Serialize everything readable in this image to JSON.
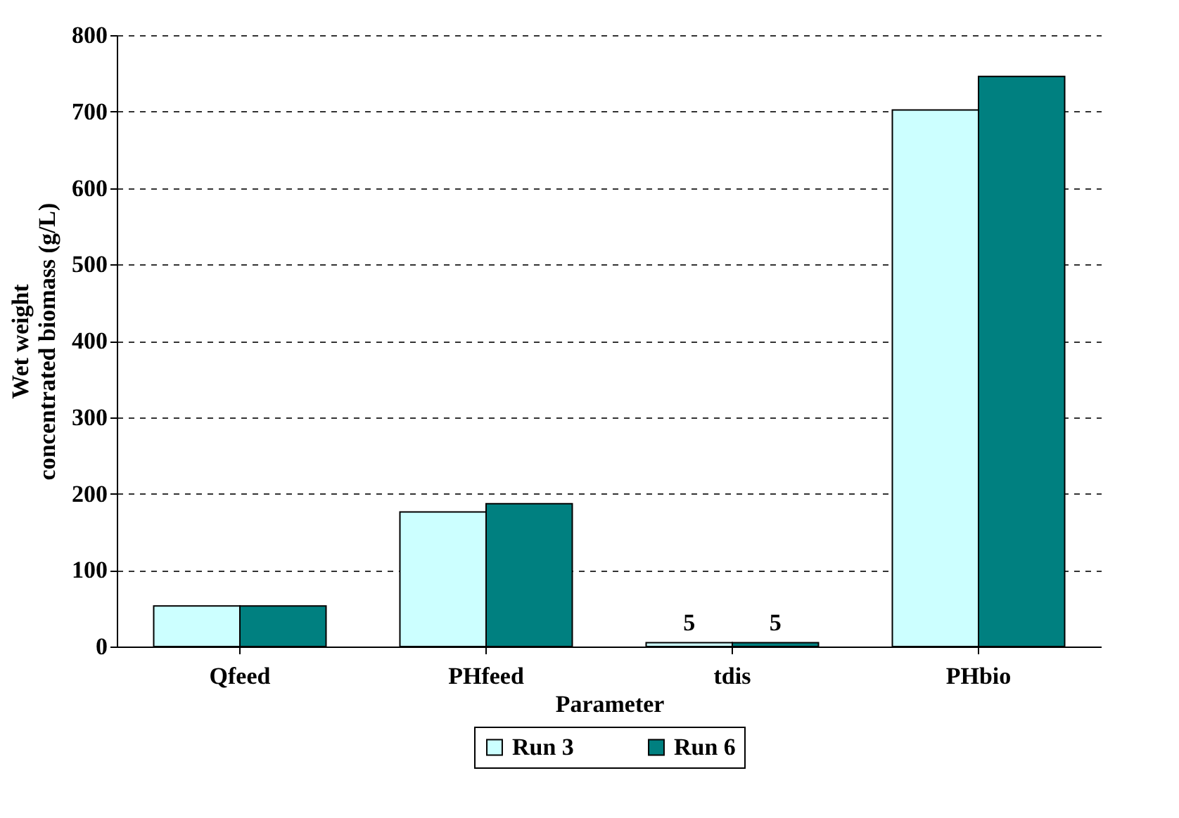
{
  "chart_data": {
    "type": "bar",
    "xlabel": "Parameter",
    "ylabel": "Wet weight concentrated biomass (g/L)",
    "categories": [
      "Qfeed",
      "PHfeed",
      "tdis",
      "PHbio"
    ],
    "series": [
      {
        "name": "Run 3",
        "color": "#ccffff",
        "values": [
          53,
          176,
          5,
          702
        ],
        "value_labels": [
          null,
          null,
          "5",
          null
        ]
      },
      {
        "name": "Run 6",
        "color": "#008080",
        "values": [
          53,
          187,
          5,
          746
        ],
        "value_labels": [
          null,
          null,
          "5",
          null
        ]
      }
    ],
    "ylim": [
      0,
      800
    ],
    "yticks": [
      0,
      100,
      200,
      300,
      400,
      500,
      600,
      700,
      800
    ],
    "grid": "y",
    "legend": "bottom"
  }
}
